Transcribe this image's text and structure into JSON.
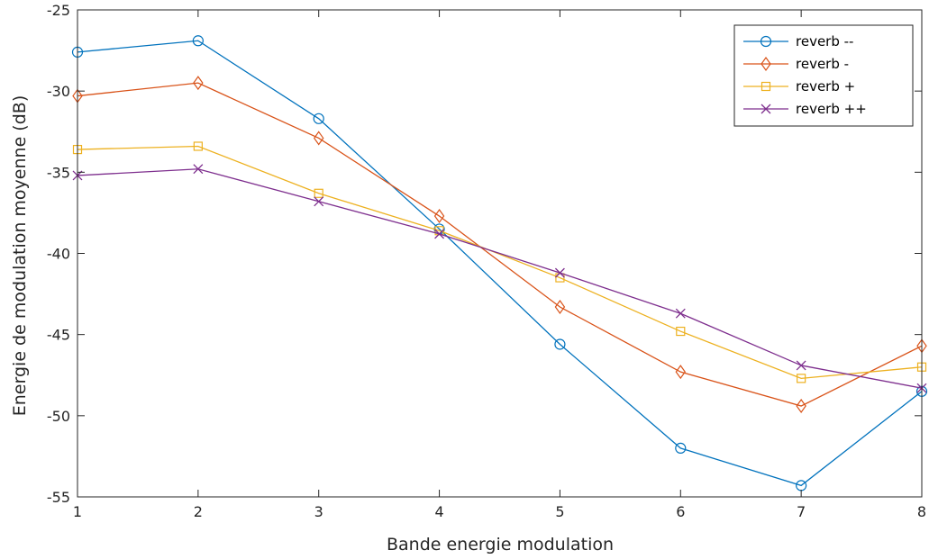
{
  "chart_data": {
    "type": "line",
    "title": "",
    "xlabel": "Bande energie modulation",
    "ylabel": "Energie de modulation moyenne (dB)",
    "x": [
      1,
      2,
      3,
      4,
      5,
      6,
      7,
      8
    ],
    "xlim": [
      1,
      8
    ],
    "ylim": [
      -55,
      -25
    ],
    "xticks": [
      1,
      2,
      3,
      4,
      5,
      6,
      7,
      8
    ],
    "yticks": [
      -25,
      -30,
      -35,
      -40,
      -45,
      -50,
      -55
    ],
    "grid": false,
    "legend_position": "top-right",
    "series": [
      {
        "name": "reverb --",
        "color": "#0072BD",
        "marker": "circle",
        "values": [
          -27.6,
          -26.9,
          -31.7,
          -38.5,
          -45.6,
          -52.0,
          -54.3,
          -48.5
        ]
      },
      {
        "name": "reverb -",
        "color": "#D95319",
        "marker": "diamond",
        "values": [
          -30.3,
          -29.5,
          -32.9,
          -37.7,
          -43.3,
          -47.3,
          -49.4,
          -45.7
        ]
      },
      {
        "name": "reverb +",
        "color": "#EDB120",
        "marker": "square",
        "values": [
          -33.6,
          -33.4,
          -36.3,
          -38.6,
          -41.5,
          -44.8,
          -47.7,
          -47.0
        ]
      },
      {
        "name": "reverb ++",
        "color": "#7E2F8E",
        "marker": "cross",
        "values": [
          -35.2,
          -34.8,
          -36.8,
          -38.8,
          -41.2,
          -43.7,
          -46.9,
          -48.3
        ]
      }
    ]
  }
}
